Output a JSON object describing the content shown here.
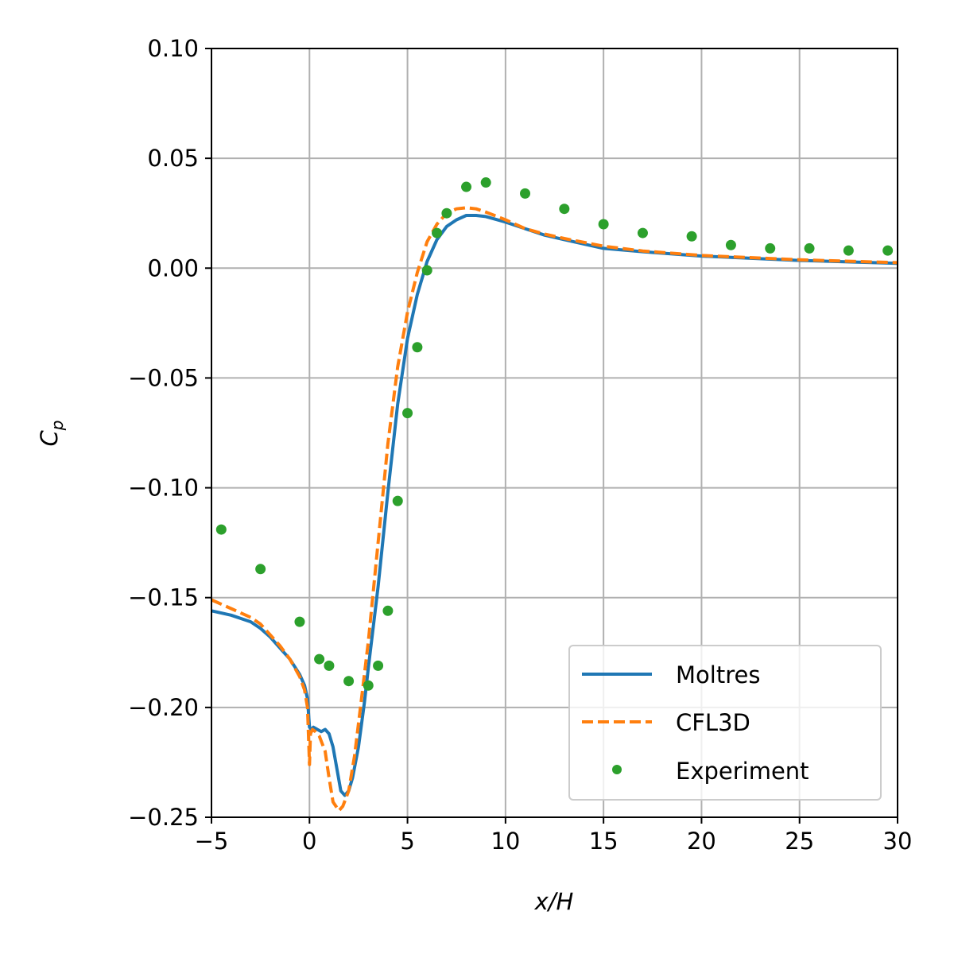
{
  "chart_data": {
    "type": "line",
    "xlabel": "x/H",
    "ylabel": "C_p",
    "ylabel_main": "C",
    "ylabel_sub": "p",
    "xlim": [
      -5,
      30
    ],
    "ylim": [
      -0.25,
      0.1
    ],
    "xticks": [
      -5,
      0,
      5,
      10,
      15,
      20,
      25,
      30
    ],
    "yticks": [
      -0.25,
      -0.2,
      -0.15,
      -0.1,
      -0.05,
      0.0,
      0.05,
      0.1
    ],
    "xtick_labels": [
      "−5",
      "0",
      "5",
      "10",
      "15",
      "20",
      "25",
      "30"
    ],
    "ytick_labels": [
      "−0.25",
      "−0.20",
      "−0.15",
      "−0.10",
      "−0.05",
      "0.00",
      "0.05",
      "0.10"
    ],
    "grid": true,
    "legend_position": "bottom-right",
    "series": [
      {
        "name": "Moltres",
        "style": "solid",
        "color": "#1f77b4",
        "x": [
          -5,
          -4,
          -3,
          -2.5,
          -2,
          -1.5,
          -1,
          -0.5,
          -0.25,
          -0.1,
          0,
          0.1,
          0.2,
          0.4,
          0.6,
          0.8,
          1.0,
          1.2,
          1.4,
          1.6,
          1.8,
          2.0,
          2.2,
          2.5,
          2.8,
          3.0,
          3.5,
          4.0,
          4.5,
          5.0,
          5.5,
          6.0,
          6.5,
          7.0,
          7.5,
          8.0,
          8.5,
          9.0,
          10,
          11,
          12,
          13,
          15,
          17,
          20,
          25,
          30
        ],
        "y": [
          -0.156,
          -0.158,
          -0.161,
          -0.164,
          -0.168,
          -0.173,
          -0.178,
          -0.185,
          -0.19,
          -0.196,
          -0.209,
          -0.21,
          -0.209,
          -0.21,
          -0.211,
          -0.21,
          -0.212,
          -0.218,
          -0.228,
          -0.238,
          -0.24,
          -0.238,
          -0.232,
          -0.218,
          -0.198,
          -0.182,
          -0.145,
          -0.102,
          -0.062,
          -0.032,
          -0.012,
          0.003,
          0.013,
          0.019,
          0.022,
          0.024,
          0.024,
          0.0235,
          0.021,
          0.018,
          0.015,
          0.013,
          0.009,
          0.0075,
          0.0055,
          0.0035,
          0.0022
        ]
      },
      {
        "name": "CFL3D",
        "style": "dashed",
        "color": "#ff7f0e",
        "x": [
          -5,
          -4,
          -3,
          -2.5,
          -2,
          -1.5,
          -1,
          -0.5,
          -0.25,
          -0.1,
          0,
          0.05,
          0.15,
          0.3,
          0.5,
          0.8,
          1.0,
          1.2,
          1.5,
          1.7,
          2.0,
          2.3,
          2.6,
          3.0,
          3.5,
          4.0,
          4.5,
          5.0,
          5.5,
          6.0,
          6.5,
          7.0,
          7.5,
          8.0,
          8.5,
          9.0,
          10,
          11,
          12,
          13,
          15,
          17,
          20,
          25,
          30
        ],
        "y": [
          -0.151,
          -0.155,
          -0.159,
          -0.162,
          -0.167,
          -0.172,
          -0.178,
          -0.186,
          -0.192,
          -0.2,
          -0.226,
          -0.212,
          -0.21,
          -0.211,
          -0.213,
          -0.22,
          -0.232,
          -0.243,
          -0.247,
          -0.245,
          -0.238,
          -0.222,
          -0.2,
          -0.17,
          -0.125,
          -0.08,
          -0.045,
          -0.02,
          -0.002,
          0.012,
          0.02,
          0.025,
          0.027,
          0.0275,
          0.027,
          0.0255,
          0.022,
          0.018,
          0.0155,
          0.0135,
          0.01,
          0.0078,
          0.0058,
          0.0038,
          0.0025
        ]
      },
      {
        "name": "Experiment",
        "style": "markers",
        "color": "#2ca02c",
        "x": [
          -4.5,
          -2.5,
          -0.5,
          0.5,
          1.0,
          2.0,
          3.0,
          3.5,
          4.0,
          4.5,
          5.0,
          5.5,
          6.0,
          6.5,
          7.0,
          8.0,
          9.0,
          11.0,
          13.0,
          15.0,
          17.0,
          19.5,
          21.5,
          23.5,
          25.5,
          27.5,
          29.5
        ],
        "y": [
          -0.119,
          -0.137,
          -0.161,
          -0.178,
          -0.181,
          -0.188,
          -0.19,
          -0.181,
          -0.156,
          -0.106,
          -0.066,
          -0.036,
          -0.001,
          0.016,
          0.025,
          0.037,
          0.039,
          0.034,
          0.027,
          0.02,
          0.016,
          0.0145,
          0.0105,
          0.009,
          0.009,
          0.008,
          0.008
        ]
      }
    ]
  }
}
